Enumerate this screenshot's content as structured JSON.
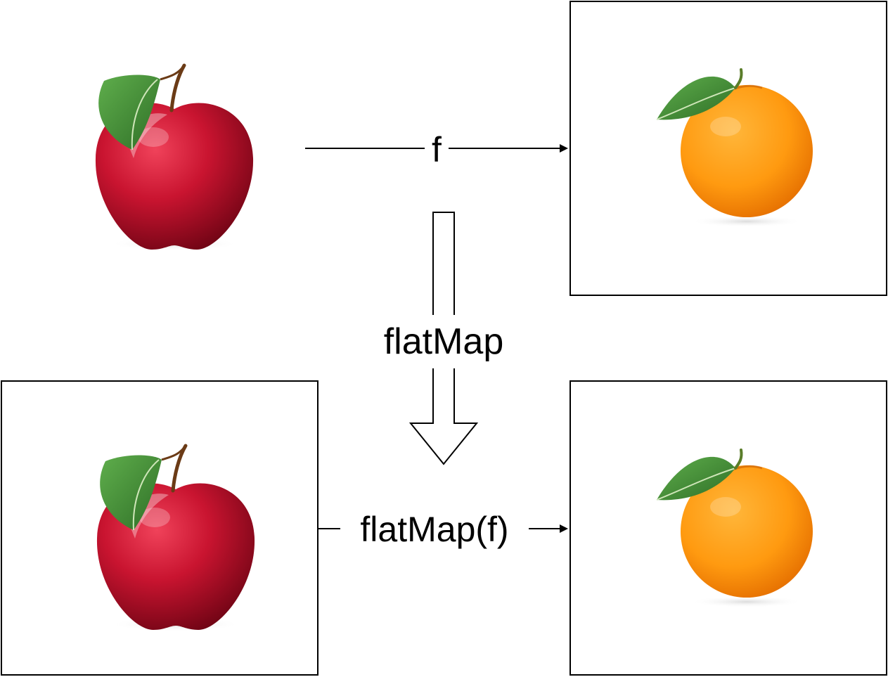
{
  "diagram": {
    "top_arrow_label": "f",
    "transform_arrow_label": "flatMap",
    "bottom_arrow_label": "flatMap(f)"
  },
  "colors": {
    "stroke": "#000000",
    "background": "#ffffff",
    "apple_red": "#c0102a",
    "apple_dark": "#7a0616",
    "leaf_green": "#3f8f34",
    "orange": "#ff9a10",
    "orange_dark": "#e87400"
  },
  "icons": {
    "apple": "apple-icon",
    "orange": "orange-icon",
    "leaf": "leaf-icon"
  }
}
